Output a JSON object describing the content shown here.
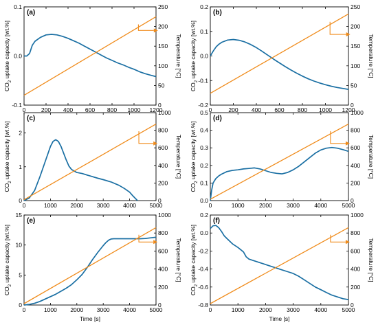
{
  "colors": {
    "co2": "#1a6fa3",
    "temperature": "#f08c1c"
  },
  "chart_data": [
    {
      "type": "line",
      "panel_label": "(a)",
      "xlim": [
        0,
        1200
      ],
      "x_ticks": [
        0,
        200,
        400,
        600,
        800,
        1000,
        1200
      ],
      "ylim": [
        -0.1,
        0.1
      ],
      "y_ticks": [
        -0.1,
        0,
        0.1
      ],
      "y_tick_labels": [
        "-0.1",
        "0.0",
        "0.1"
      ],
      "y2lim": [
        0,
        250
      ],
      "y2_ticks": [
        0,
        50,
        100,
        150,
        200,
        250
      ],
      "xlabel": "",
      "ylabel": "CO2 uptake capacity [wt.%]",
      "y2label": "Temperature [°C]",
      "series": [
        {
          "x": [
            0,
            25,
            50,
            75,
            100,
            150,
            200,
            250,
            300,
            350,
            400,
            450,
            500,
            550,
            600,
            650,
            700,
            750,
            800,
            850,
            900,
            950,
            1000,
            1050,
            1100,
            1150,
            1200
          ],
          "y": [
            0.0,
            0.0,
            0.005,
            0.022,
            0.03,
            0.038,
            0.043,
            0.044,
            0.043,
            0.04,
            0.036,
            0.031,
            0.026,
            0.02,
            0.014,
            0.008,
            0.002,
            -0.004,
            -0.009,
            -0.014,
            -0.018,
            -0.023,
            -0.027,
            -0.032,
            -0.036,
            -0.039,
            -0.042
          ]
        },
        {
          "axis": "y2",
          "x": [
            0,
            1200
          ],
          "y": [
            25,
            225
          ]
        }
      ],
      "arrow": {
        "x_from": 1040,
        "x_to": 1180,
        "level": 190
      }
    },
    {
      "type": "line",
      "panel_label": "(b)",
      "xlim": [
        0,
        1200
      ],
      "x_ticks": [
        0,
        200,
        400,
        600,
        800,
        1000,
        1200
      ],
      "ylim": [
        -0.2,
        0.2
      ],
      "y_ticks": [
        -0.2,
        -0.1,
        0,
        0.1,
        0.2
      ],
      "y_tick_labels": [
        "-0.2",
        "-0.1",
        "0.0",
        "0.1",
        "0.2"
      ],
      "y2lim": [
        0,
        250
      ],
      "y2_ticks": [
        0,
        50,
        100,
        150,
        200,
        250
      ],
      "xlabel": "",
      "ylabel": "",
      "y2label": "Temperature [°C]",
      "series": [
        {
          "x": [
            0,
            25,
            50,
            75,
            100,
            150,
            200,
            250,
            300,
            350,
            400,
            450,
            500,
            550,
            600,
            650,
            700,
            750,
            800,
            850,
            900,
            950,
            1000,
            1050,
            1100,
            1150,
            1200
          ],
          "y": [
            0.0,
            0.02,
            0.037,
            0.048,
            0.056,
            0.065,
            0.067,
            0.064,
            0.057,
            0.047,
            0.034,
            0.019,
            0.003,
            -0.013,
            -0.028,
            -0.043,
            -0.057,
            -0.07,
            -0.082,
            -0.093,
            -0.102,
            -0.11,
            -0.117,
            -0.123,
            -0.128,
            -0.132,
            -0.136
          ]
        },
        {
          "axis": "y2",
          "x": [
            0,
            1200
          ],
          "y": [
            30,
            232
          ]
        }
      ],
      "arrow": {
        "x_from": 1040,
        "x_to": 1180,
        "level": 180
      }
    },
    {
      "type": "line",
      "panel_label": "(c)",
      "xlim": [
        0,
        5000
      ],
      "x_ticks": [
        0,
        1000,
        2000,
        3000,
        4000,
        5000
      ],
      "ylim": [
        0,
        2.6
      ],
      "y_ticks": [
        0,
        1,
        2
      ],
      "y_tick_labels": [
        "0",
        "1",
        "2"
      ],
      "y2lim": [
        0,
        1000
      ],
      "y2_ticks": [
        0,
        200,
        400,
        600,
        800,
        1000
      ],
      "xlabel": "",
      "ylabel": "",
      "y2label": "Temperature [°C]",
      "series": [
        {
          "x": [
            0,
            200,
            400,
            600,
            800,
            1000,
            1100,
            1200,
            1300,
            1400,
            1500,
            1600,
            1700,
            1800,
            2000,
            2200,
            2500,
            2800,
            3000,
            3300,
            3600,
            3800,
            4000,
            4100,
            4200,
            4300
          ],
          "y": [
            0.0,
            0.08,
            0.3,
            0.7,
            1.15,
            1.6,
            1.75,
            1.8,
            1.75,
            1.6,
            1.4,
            1.2,
            1.02,
            0.92,
            0.83,
            0.8,
            0.73,
            0.66,
            0.62,
            0.55,
            0.45,
            0.36,
            0.25,
            0.16,
            0.08,
            0.0
          ]
        },
        {
          "axis": "y2",
          "x": [
            0,
            5000
          ],
          "y": [
            10,
            870
          ]
        }
      ],
      "arrow": {
        "x_from": 4350,
        "x_to": 4900,
        "level": 650
      }
    },
    {
      "type": "line",
      "panel_label": "(d)",
      "xlim": [
        0,
        5000
      ],
      "x_ticks": [
        0,
        1000,
        2000,
        3000,
        4000,
        5000
      ],
      "ylim": [
        0,
        0.5
      ],
      "y_ticks": [
        0,
        0.1,
        0.2,
        0.3,
        0.4,
        0.5
      ],
      "y_tick_labels": [
        "0.0",
        "0.1",
        "0.2",
        "0.3",
        "0.4",
        "0.5"
      ],
      "y2lim": [
        0,
        1000
      ],
      "y2_ticks": [
        0,
        200,
        400,
        600,
        800,
        1000
      ],
      "xlabel": "",
      "ylabel": "",
      "y2label": "Temperature [°C]",
      "series": [
        {
          "x": [
            0,
            50,
            100,
            200,
            300,
            400,
            600,
            800,
            1000,
            1200,
            1400,
            1600,
            1800,
            2000,
            2200,
            2400,
            2600,
            2800,
            3000,
            3200,
            3400,
            3600,
            3800,
            4000,
            4200,
            4400,
            4600,
            4800,
            5000
          ],
          "y": [
            0.0,
            0.06,
            0.1,
            0.125,
            0.14,
            0.15,
            0.165,
            0.172,
            0.175,
            0.18,
            0.183,
            0.186,
            0.18,
            0.17,
            0.16,
            0.155,
            0.152,
            0.16,
            0.175,
            0.195,
            0.22,
            0.245,
            0.27,
            0.288,
            0.298,
            0.302,
            0.298,
            0.29,
            0.28
          ]
        },
        {
          "axis": "y2",
          "x": [
            0,
            5000
          ],
          "y": [
            15,
            870
          ]
        }
      ],
      "arrow": {
        "x_from": 4350,
        "x_to": 4900,
        "level": 650
      }
    },
    {
      "type": "line",
      "panel_label": "(e)",
      "xlim": [
        0,
        5000
      ],
      "x_ticks": [
        0,
        1000,
        2000,
        3000,
        4000,
        5000
      ],
      "ylim": [
        0,
        15
      ],
      "y_ticks": [
        0,
        5,
        10,
        15
      ],
      "y_tick_labels": [
        "0",
        "5",
        "10",
        "15"
      ],
      "y2lim": [
        0,
        1000
      ],
      "y2_ticks": [
        0,
        200,
        400,
        600,
        800,
        1000
      ],
      "xlabel": "Time [s]",
      "ylabel": "",
      "y2label": "Temperature [°C]",
      "series": [
        {
          "x": [
            0,
            200,
            400,
            600,
            800,
            1000,
            1200,
            1400,
            1600,
            1800,
            2000,
            2200,
            2400,
            2600,
            2800,
            3000,
            3100,
            3200,
            3300,
            3400,
            3600,
            3800,
            4000,
            4200,
            4400,
            4600,
            4800,
            5000
          ],
          "y": [
            0.0,
            0.1,
            0.3,
            0.6,
            1.0,
            1.4,
            1.8,
            2.3,
            2.8,
            3.4,
            4.2,
            5.1,
            6.3,
            7.6,
            8.8,
            9.9,
            10.4,
            10.8,
            11.0,
            11.05,
            11.05,
            11.05,
            11.05,
            11.05,
            11.05,
            11.1,
            11.2,
            11.3
          ]
        },
        {
          "axis": "y2",
          "x": [
            0,
            5000
          ],
          "y": [
            15,
            860
          ]
        }
      ],
      "arrow": {
        "x_from": 4350,
        "x_to": 4900,
        "level": 700
      }
    },
    {
      "type": "line",
      "panel_label": "(f)",
      "xlim": [
        0,
        5000
      ],
      "x_ticks": [
        0,
        1000,
        2000,
        3000,
        4000,
        5000
      ],
      "ylim": [
        -0.8,
        0.2
      ],
      "y_ticks": [
        -0.8,
        -0.6,
        -0.4,
        -0.2,
        0,
        0.2
      ],
      "y_tick_labels": [
        "-0.8",
        "-0.6",
        "-0.4",
        "-0.2",
        "0.0",
        "0.2"
      ],
      "y2lim": [
        0,
        1000
      ],
      "y2_ticks": [
        0,
        200,
        400,
        600,
        800,
        1000
      ],
      "xlabel": "Time [s]",
      "ylabel": "",
      "y2label": "Temperature [°C]",
      "series": [
        {
          "x": [
            0,
            100,
            200,
            300,
            400,
            500,
            600,
            800,
            1000,
            1200,
            1300,
            1400,
            1600,
            1800,
            2000,
            2200,
            2400,
            2600,
            2800,
            3000,
            3200,
            3400,
            3600,
            3800,
            4000,
            4200,
            4400,
            4600,
            4800,
            5000
          ],
          "y": [
            0.05,
            0.08,
            0.085,
            0.06,
            0.02,
            -0.03,
            -0.06,
            -0.12,
            -0.16,
            -0.21,
            -0.265,
            -0.29,
            -0.31,
            -0.33,
            -0.35,
            -0.37,
            -0.39,
            -0.41,
            -0.43,
            -0.45,
            -0.48,
            -0.52,
            -0.56,
            -0.6,
            -0.63,
            -0.66,
            -0.69,
            -0.71,
            -0.73,
            -0.74
          ]
        },
        {
          "axis": "y2",
          "x": [
            0,
            5000
          ],
          "y": [
            15,
            860
          ]
        }
      ],
      "arrow": {
        "x_from": 4350,
        "x_to": 4900,
        "level": 700
      }
    }
  ]
}
